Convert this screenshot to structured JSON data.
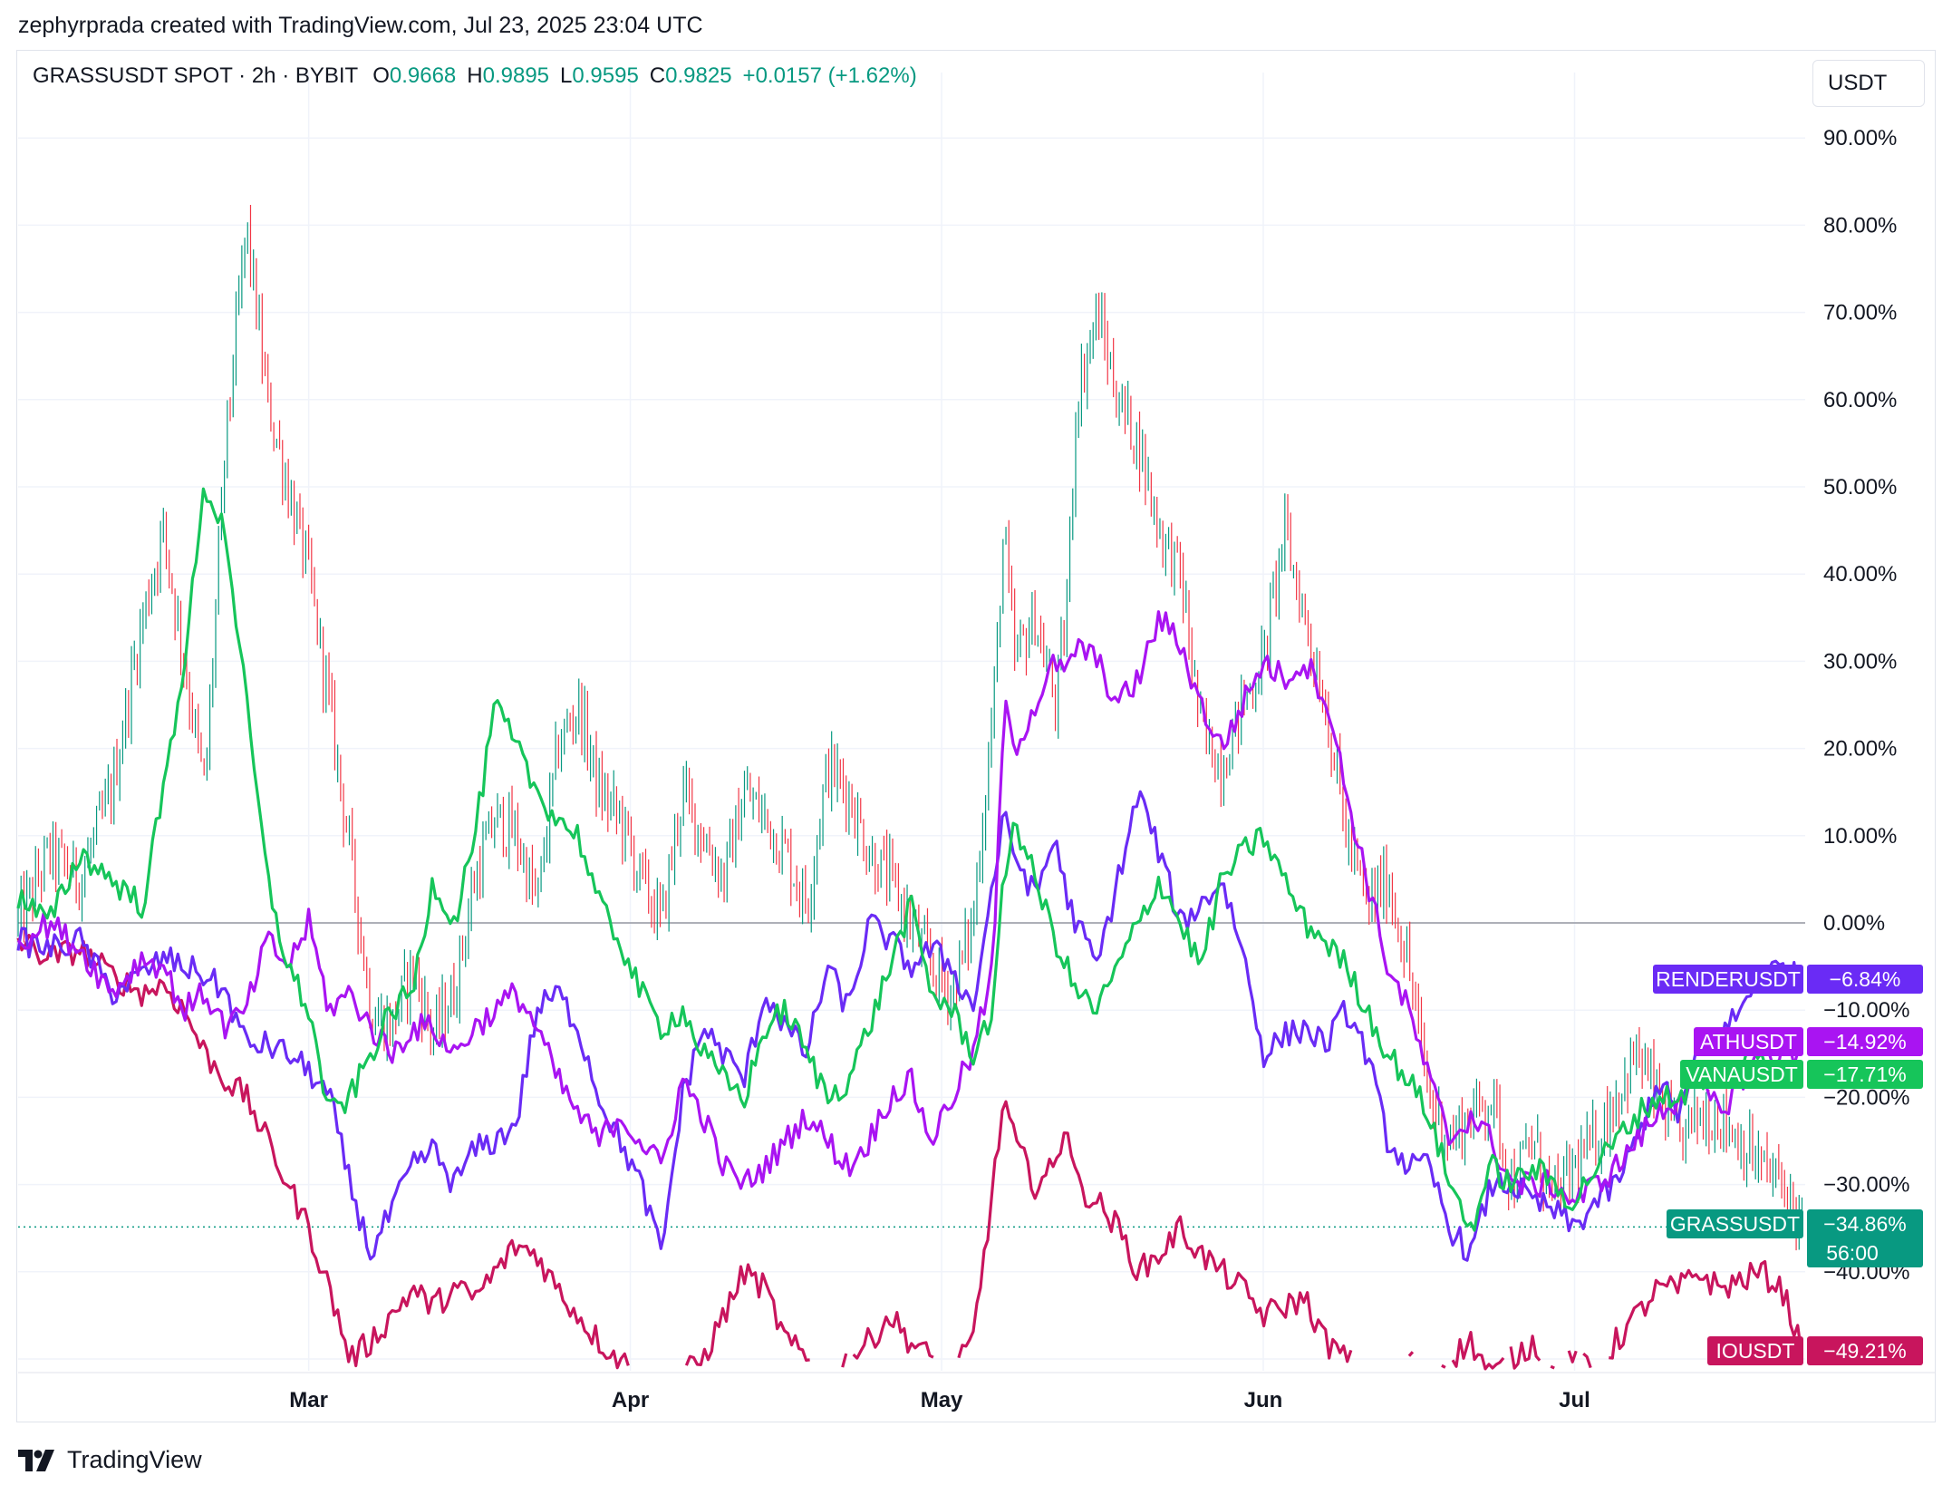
{
  "attribution": "zephyrprada created with TradingView.com, Jul 23, 2025 23:04 UTC",
  "branding": "TradingView",
  "currency_button": "USDT",
  "legend": {
    "symbol": "GRASSUSDT SPOT · 2h · BYBIT",
    "open_label": "O",
    "open": "0.9668",
    "high_label": "H",
    "high": "0.9895",
    "low_label": "L",
    "low": "0.9595",
    "close_label": "C",
    "close": "0.9825",
    "change": "+0.0157 (+1.62%)"
  },
  "countdown": "56:00",
  "colors": {
    "candle_up": "#089981",
    "candle_down": "#f23645",
    "GRASSUSDT": "#089981",
    "RENDERUSDT": "#6a2bf5",
    "ATHUSDT": "#a914f2",
    "VANAUSDT": "#16c55a",
    "IOUSDT": "#c8155d"
  },
  "chart_data": {
    "type": "line",
    "yscale": "percent change",
    "ylim": [
      -50,
      95
    ],
    "y_ticks": [
      "90.00%",
      "80.00%",
      "70.00%",
      "60.00%",
      "50.00%",
      "40.00%",
      "30.00%",
      "20.00%",
      "10.00%",
      "0.00%",
      "−10.00%",
      "−20.00%",
      "−30.00%",
      "−40.00%"
    ],
    "x_months": [
      "Mar",
      "Apr",
      "May",
      "Jun",
      "Jul"
    ],
    "x_day_range": [
      "2025-02-01",
      "2025-07-23"
    ],
    "x_month_days": [
      28,
      59,
      89,
      120,
      150
    ],
    "grid": true,
    "series": [
      {
        "name": "GRASSUSDT",
        "kind": "candles",
        "last": "−34.86%",
        "x": [
          0,
          3,
          6,
          9,
          12,
          14,
          16,
          18,
          20,
          22,
          24,
          26,
          28,
          30,
          32,
          34,
          36,
          38,
          40,
          42,
          44,
          46,
          48,
          50,
          52,
          54,
          56,
          58,
          60,
          62,
          64,
          66,
          68,
          70,
          72,
          74,
          76,
          78,
          80,
          82,
          84,
          86,
          88,
          90,
          92,
          94,
          95,
          96,
          98,
          100,
          101,
          102,
          104,
          106,
          108,
          110,
          112,
          114,
          116,
          118,
          120,
          122,
          124,
          126,
          128,
          130,
          132,
          134,
          136,
          138,
          140,
          142,
          144,
          146,
          148,
          150,
          152,
          154,
          156,
          158,
          160,
          162,
          164,
          166,
          168,
          170,
          172
        ],
        "values": [
          0,
          8,
          5,
          15,
          35,
          45,
          30,
          15,
          55,
          80,
          60,
          50,
          40,
          25,
          8,
          -10,
          -12,
          -5,
          -13,
          -8,
          5,
          12,
          10,
          2,
          20,
          25,
          15,
          12,
          5,
          0,
          15,
          10,
          5,
          15,
          12,
          8,
          2,
          18,
          15,
          8,
          5,
          0,
          -5,
          -8,
          0,
          25,
          45,
          30,
          35,
          25,
          35,
          60,
          70,
          60,
          55,
          45,
          40,
          22,
          18,
          25,
          30,
          45,
          35,
          25,
          10,
          2,
          5,
          -5,
          -20,
          -25,
          -22,
          -20,
          -30,
          -25,
          -32,
          -28,
          -25,
          -20,
          -15,
          -20,
          -25,
          -22,
          -22,
          -25,
          -28,
          -30,
          -34.86
        ]
      },
      {
        "name": "RENDERUSDT",
        "kind": "line",
        "last": "−6.84%",
        "x": [
          0,
          3,
          6,
          9,
          12,
          14,
          16,
          18,
          20,
          22,
          24,
          26,
          28,
          30,
          32,
          34,
          36,
          38,
          40,
          42,
          44,
          46,
          48,
          50,
          52,
          54,
          56,
          58,
          60,
          62,
          64,
          66,
          68,
          70,
          72,
          74,
          76,
          78,
          80,
          82,
          84,
          86,
          88,
          90,
          92,
          94,
          95,
          96,
          98,
          100,
          101,
          102,
          104,
          106,
          108,
          110,
          112,
          114,
          116,
          118,
          120,
          122,
          124,
          126,
          128,
          130,
          132,
          134,
          136,
          138,
          140,
          142,
          144,
          146,
          148,
          150,
          152,
          154,
          156,
          158,
          160,
          162,
          164,
          166,
          168,
          170,
          172
        ],
        "values": [
          -2,
          -3,
          -2,
          -8,
          -6,
          -4,
          -5,
          -6,
          -8,
          -14,
          -14,
          -15,
          -17,
          -20,
          -30,
          -38,
          -33,
          -28,
          -26,
          -30,
          -26,
          -25,
          -23,
          -10,
          -8,
          -12,
          -20,
          -25,
          -30,
          -38,
          -20,
          -12,
          -15,
          -18,
          -8,
          -12,
          -15,
          -5,
          -10,
          0,
          -2,
          -5,
          -3,
          -5,
          -10,
          5,
          12,
          8,
          3,
          10,
          3,
          0,
          -5,
          5,
          15,
          8,
          0,
          2,
          5,
          -3,
          -15,
          -13,
          -12,
          -14,
          -10,
          -15,
          -25,
          -28,
          -28,
          -35,
          -38,
          -30,
          -30,
          -32,
          -33,
          -35,
          -32,
          -30,
          -25,
          -18,
          -22,
          -15,
          -13,
          -10,
          -6,
          -5,
          -6.84
        ]
      },
      {
        "name": "ATHUSDT",
        "kind": "line",
        "last": "−14.92%",
        "x": [
          0,
          3,
          6,
          9,
          12,
          14,
          16,
          18,
          20,
          22,
          24,
          26,
          28,
          30,
          32,
          34,
          36,
          38,
          40,
          42,
          44,
          46,
          48,
          50,
          52,
          54,
          56,
          58,
          60,
          62,
          64,
          66,
          68,
          70,
          72,
          74,
          76,
          78,
          80,
          82,
          84,
          86,
          88,
          90,
          92,
          94,
          95,
          96,
          98,
          100,
          101,
          102,
          104,
          106,
          108,
          110,
          112,
          114,
          116,
          118,
          120,
          122,
          124,
          126,
          128,
          130,
          132,
          134,
          136,
          138,
          140,
          142,
          144,
          146,
          148,
          150,
          152,
          154,
          156,
          158,
          160,
          162,
          164,
          166,
          168,
          170,
          172
        ],
        "values": [
          -2,
          0,
          -3,
          -8,
          -4,
          -5,
          -10,
          -8,
          -12,
          -10,
          -2,
          -5,
          0,
          -10,
          -8,
          -12,
          -15,
          -12,
          -12,
          -15,
          -12,
          -10,
          -8,
          -12,
          -18,
          -22,
          -25,
          -22,
          -25,
          -28,
          -18,
          -22,
          -28,
          -30,
          -28,
          -25,
          -22,
          -25,
          -28,
          -25,
          -20,
          -18,
          -25,
          -20,
          -15,
          -5,
          25,
          20,
          25,
          30,
          28,
          32,
          30,
          25,
          28,
          35,
          32,
          25,
          20,
          25,
          30,
          28,
          30,
          26,
          15,
          5,
          -5,
          -10,
          -18,
          -25,
          -22,
          -25,
          -30,
          -30,
          -30,
          -32,
          -30,
          -28,
          -25,
          -22,
          -20,
          -18,
          -22,
          -18,
          -15,
          -15,
          -14.92
        ]
      },
      {
        "name": "VANAUSDT",
        "kind": "line",
        "last": "−17.71%",
        "x": [
          0,
          3,
          6,
          9,
          12,
          14,
          16,
          18,
          20,
          22,
          24,
          26,
          28,
          30,
          32,
          34,
          36,
          38,
          40,
          42,
          44,
          46,
          48,
          50,
          52,
          54,
          56,
          58,
          60,
          62,
          64,
          66,
          68,
          70,
          72,
          74,
          76,
          78,
          80,
          82,
          84,
          86,
          88,
          90,
          92,
          94,
          95,
          96,
          98,
          100,
          101,
          102,
          104,
          106,
          108,
          110,
          112,
          114,
          116,
          118,
          120,
          122,
          124,
          126,
          128,
          130,
          132,
          134,
          136,
          138,
          140,
          142,
          144,
          146,
          148,
          150,
          152,
          154,
          156,
          158,
          160,
          162,
          164,
          166,
          168,
          170,
          172
        ],
        "values": [
          3,
          0,
          8,
          5,
          2,
          15,
          30,
          50,
          45,
          25,
          5,
          -5,
          -10,
          -22,
          -20,
          -15,
          -10,
          -8,
          5,
          0,
          10,
          25,
          20,
          15,
          12,
          10,
          2,
          -2,
          -8,
          -12,
          -10,
          -15,
          -18,
          -20,
          -12,
          -10,
          -15,
          -20,
          -18,
          -12,
          -5,
          2,
          -8,
          -10,
          -15,
          -10,
          5,
          12,
          5,
          -2,
          -5,
          -8,
          -10,
          -5,
          0,
          5,
          0,
          -5,
          5,
          8,
          10,
          5,
          0,
          -2,
          -5,
          -10,
          -15,
          -18,
          -22,
          -30,
          -35,
          -28,
          -30,
          -28,
          -30,
          -32,
          -28,
          -25,
          -22,
          -20,
          -20,
          -18,
          -18,
          -16,
          -15,
          -17,
          -17.71
        ]
      },
      {
        "name": "IOUSDT",
        "kind": "line",
        "last": "−49.21%",
        "x": [
          0,
          3,
          6,
          9,
          12,
          14,
          16,
          18,
          20,
          22,
          24,
          26,
          28,
          30,
          32,
          34,
          36,
          38,
          40,
          42,
          44,
          46,
          48,
          50,
          52,
          54,
          56,
          58,
          60,
          62,
          64,
          66,
          68,
          70,
          72,
          74,
          76,
          78,
          80,
          82,
          84,
          86,
          88,
          90,
          92,
          94,
          95,
          96,
          98,
          100,
          101,
          102,
          104,
          106,
          108,
          110,
          112,
          114,
          116,
          118,
          120,
          122,
          124,
          126,
          128,
          130,
          132,
          134,
          136,
          138,
          140,
          142,
          144,
          146,
          148,
          150,
          152,
          154,
          156,
          158,
          160,
          162,
          164,
          166,
          168,
          170,
          172
        ],
        "values": [
          -2,
          -4,
          -3,
          -6,
          -8,
          -7,
          -10,
          -15,
          -18,
          -20,
          -25,
          -30,
          -35,
          -42,
          -50,
          -48,
          -45,
          -42,
          -44,
          -42,
          -43,
          -40,
          -37,
          -38,
          -42,
          -45,
          -48,
          -50,
          -52,
          -55,
          -52,
          -50,
          -45,
          -40,
          -42,
          -48,
          -50,
          -52,
          -50,
          -48,
          -45,
          -48,
          -50,
          -52,
          -48,
          -30,
          -20,
          -25,
          -30,
          -28,
          -22,
          -30,
          -32,
          -35,
          -40,
          -38,
          -35,
          -38,
          -40,
          -42,
          -45,
          -44,
          -43,
          -48,
          -50,
          -52,
          -55,
          -50,
          -52,
          -50,
          -48,
          -52,
          -50,
          -48,
          -52,
          -50,
          -52,
          -48,
          -45,
          -42,
          -42,
          -40,
          -42,
          -41,
          -40,
          -42,
          -49.21
        ]
      }
    ]
  }
}
